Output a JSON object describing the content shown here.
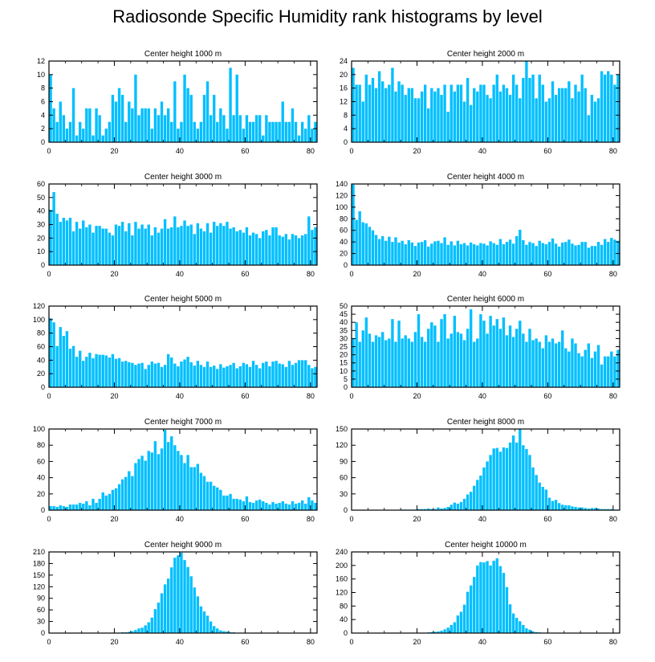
{
  "title": "Radiosonde Specific Humidity rank histograms by level",
  "bar_color": "#00bfff",
  "chart_data": [
    {
      "type": "bar",
      "title": "Center height 1000 m",
      "xlim": [
        0,
        82
      ],
      "ylim": [
        0,
        12
      ],
      "xticks": [
        0,
        20,
        40,
        60,
        80
      ],
      "yticks": [
        0,
        2,
        4,
        6,
        8,
        10,
        12
      ],
      "values": [
        10,
        5,
        3,
        6,
        4,
        2,
        3,
        8,
        1,
        3,
        2,
        5,
        5,
        1,
        5,
        4,
        1,
        2,
        3,
        7,
        6,
        8,
        7,
        3,
        6,
        5,
        10,
        4,
        5,
        5,
        5,
        2,
        5,
        4,
        6,
        4,
        5,
        3,
        9,
        2,
        3,
        10,
        8,
        7,
        3,
        2,
        3,
        7,
        9,
        4,
        7,
        3,
        5,
        4,
        2,
        11,
        4,
        10,
        4,
        2,
        4,
        3,
        3,
        4,
        4,
        1,
        4,
        3,
        3,
        3,
        3,
        6,
        3,
        3,
        5,
        3,
        1,
        3,
        2,
        4,
        2,
        3
      ]
    },
    {
      "type": "bar",
      "title": "Center height 2000 m",
      "xlim": [
        0,
        82
      ],
      "ylim": [
        0,
        24
      ],
      "xticks": [
        0,
        20,
        40,
        60,
        80
      ],
      "yticks": [
        0,
        4,
        8,
        12,
        16,
        20,
        24
      ],
      "values": [
        22,
        17,
        17,
        12,
        20,
        17,
        19,
        16,
        21,
        18,
        16,
        17,
        22,
        15,
        18,
        17,
        14,
        16,
        16,
        13,
        13,
        15,
        17,
        10,
        16,
        15,
        16,
        14,
        17,
        9,
        17,
        15,
        17,
        17,
        12,
        19,
        11,
        16,
        15,
        17,
        17,
        14,
        13,
        17,
        20,
        15,
        17,
        16,
        14,
        20,
        17,
        13,
        19,
        24,
        19,
        20,
        13,
        20,
        17,
        12,
        13,
        18,
        14,
        16,
        16,
        16,
        18,
        13,
        17,
        15,
        20,
        16,
        8,
        14,
        12,
        13,
        21,
        20,
        21,
        20,
        17,
        20
      ]
    },
    {
      "type": "bar",
      "title": "Center height 3000 m",
      "xlim": [
        0,
        82
      ],
      "ylim": [
        0,
        60
      ],
      "xticks": [
        0,
        20,
        40,
        60,
        80
      ],
      "yticks": [
        0,
        10,
        20,
        30,
        40,
        50,
        60
      ],
      "values": [
        41,
        54,
        38,
        32,
        35,
        33,
        35,
        25,
        32,
        27,
        33,
        28,
        30,
        24,
        29,
        29,
        27,
        27,
        24,
        22,
        30,
        29,
        32,
        25,
        31,
        22,
        32,
        27,
        30,
        27,
        30,
        22,
        28,
        24,
        27,
        34,
        27,
        28,
        36,
        28,
        29,
        33,
        29,
        30,
        23,
        31,
        27,
        25,
        31,
        24,
        32,
        29,
        31,
        29,
        32,
        27,
        28,
        25,
        26,
        24,
        28,
        22,
        24,
        23,
        20,
        25,
        26,
        22,
        28,
        28,
        22,
        21,
        23,
        19,
        23,
        22,
        20,
        22,
        23,
        36,
        26,
        28
      ]
    },
    {
      "type": "bar",
      "title": "Center height 4000 m",
      "xlim": [
        0,
        82
      ],
      "ylim": [
        0,
        140
      ],
      "xticks": [
        0,
        20,
        40,
        60,
        80
      ],
      "yticks": [
        0,
        20,
        40,
        60,
        80,
        100,
        120,
        140
      ],
      "values": [
        139,
        78,
        93,
        74,
        72,
        66,
        60,
        52,
        45,
        50,
        42,
        49,
        40,
        48,
        39,
        42,
        36,
        43,
        39,
        33,
        39,
        40,
        43,
        32,
        37,
        41,
        42,
        38,
        48,
        35,
        41,
        34,
        42,
        36,
        38,
        34,
        39,
        36,
        34,
        38,
        37,
        34,
        41,
        38,
        35,
        45,
        36,
        40,
        44,
        37,
        50,
        61,
        43,
        35,
        40,
        38,
        33,
        42,
        38,
        36,
        40,
        46,
        37,
        32,
        39,
        40,
        44,
        37,
        34,
        35,
        40,
        40,
        30,
        33,
        33,
        40,
        35,
        45,
        40,
        47,
        44,
        42
      ]
    },
    {
      "type": "bar",
      "title": "Center height 5000 m",
      "xlim": [
        0,
        82
      ],
      "ylim": [
        0,
        120
      ],
      "xticks": [
        0,
        20,
        40,
        60,
        80
      ],
      "yticks": [
        0,
        20,
        40,
        60,
        80,
        100,
        120
      ],
      "values": [
        102,
        96,
        61,
        89,
        76,
        83,
        57,
        61,
        45,
        54,
        39,
        45,
        51,
        43,
        49,
        48,
        48,
        47,
        44,
        49,
        42,
        43,
        38,
        39,
        37,
        36,
        33,
        35,
        36,
        27,
        33,
        38,
        35,
        36,
        30,
        33,
        49,
        44,
        35,
        31,
        38,
        41,
        45,
        37,
        32,
        39,
        33,
        30,
        38,
        30,
        32,
        27,
        34,
        29,
        31,
        33,
        36,
        28,
        31,
        36,
        34,
        30,
        39,
        33,
        28,
        36,
        38,
        31,
        38,
        39,
        35,
        34,
        30,
        39,
        33,
        36,
        40,
        40,
        40,
        33,
        28,
        30
      ]
    },
    {
      "type": "bar",
      "title": "Center height 6000 m",
      "xlim": [
        0,
        82
      ],
      "ylim": [
        0,
        50
      ],
      "xticks": [
        0,
        20,
        40,
        60,
        80
      ],
      "yticks": [
        0,
        5,
        10,
        15,
        20,
        25,
        30,
        35,
        40,
        45,
        50
      ],
      "values": [
        30,
        40,
        28,
        35,
        43,
        33,
        28,
        32,
        31,
        34,
        29,
        30,
        42,
        28,
        41,
        30,
        32,
        30,
        28,
        34,
        45,
        31,
        28,
        36,
        40,
        38,
        28,
        42,
        45,
        30,
        33,
        44,
        34,
        33,
        29,
        36,
        48,
        28,
        30,
        45,
        41,
        33,
        44,
        38,
        42,
        36,
        43,
        32,
        38,
        31,
        36,
        41,
        33,
        28,
        36,
        29,
        30,
        28,
        24,
        32,
        28,
        30,
        27,
        28,
        35,
        24,
        22,
        30,
        27,
        21,
        19,
        23,
        27,
        18,
        22,
        26,
        14,
        19,
        19,
        22,
        19,
        23
      ]
    },
    {
      "type": "bar",
      "title": "Center height 7000 m",
      "xlim": [
        0,
        82
      ],
      "ylim": [
        0,
        100
      ],
      "xticks": [
        0,
        20,
        40,
        60,
        80
      ],
      "yticks": [
        0,
        20,
        40,
        60,
        80,
        100
      ],
      "values": [
        5,
        5,
        4,
        6,
        5,
        4,
        7,
        7,
        7,
        9,
        8,
        11,
        6,
        14,
        9,
        14,
        22,
        18,
        20,
        25,
        27,
        32,
        38,
        41,
        48,
        42,
        58,
        63,
        67,
        61,
        73,
        71,
        85,
        69,
        76,
        99,
        84,
        91,
        80,
        73,
        68,
        58,
        68,
        53,
        53,
        57,
        46,
        42,
        35,
        35,
        30,
        28,
        25,
        18,
        18,
        20,
        14,
        14,
        13,
        11,
        17,
        10,
        9,
        12,
        13,
        11,
        9,
        7,
        10,
        8,
        9,
        11,
        8,
        7,
        11,
        8,
        9,
        12,
        8,
        16,
        12,
        9
      ]
    },
    {
      "type": "bar",
      "title": "Center height 8000 m",
      "xlim": [
        0,
        82
      ],
      "ylim": [
        0,
        150
      ],
      "xticks": [
        0,
        20,
        40,
        60,
        80
      ],
      "yticks": [
        0,
        30,
        60,
        90,
        120,
        150
      ],
      "values": [
        0,
        0,
        0,
        0,
        0,
        0,
        0,
        0,
        0,
        0,
        0,
        0,
        0,
        0,
        0,
        1,
        1,
        1,
        1,
        1,
        2,
        2,
        2,
        3,
        2,
        2,
        5,
        3,
        4,
        6,
        10,
        14,
        12,
        15,
        21,
        29,
        34,
        45,
        56,
        64,
        79,
        90,
        102,
        114,
        115,
        108,
        116,
        115,
        125,
        138,
        125,
        150,
        120,
        113,
        102,
        79,
        65,
        51,
        43,
        38,
        23,
        17,
        19,
        13,
        10,
        9,
        9,
        7,
        6,
        5,
        5,
        4,
        3,
        4,
        4,
        3,
        2,
        2,
        2,
        2,
        1,
        1
      ]
    },
    {
      "type": "bar",
      "title": "Center height 9000 m",
      "xlim": [
        0,
        82
      ],
      "ylim": [
        0,
        210
      ],
      "xticks": [
        0,
        20,
        40,
        60,
        80
      ],
      "yticks": [
        0,
        30,
        60,
        90,
        120,
        150,
        180,
        210
      ],
      "values": [
        0,
        0,
        0,
        0,
        0,
        0,
        0,
        0,
        0,
        0,
        0,
        0,
        0,
        0,
        0,
        0,
        0,
        0,
        0,
        1,
        1,
        1,
        2,
        2,
        3,
        5,
        8,
        12,
        14,
        20,
        28,
        40,
        62,
        79,
        103,
        126,
        141,
        170,
        195,
        201,
        208,
        189,
        171,
        147,
        118,
        95,
        69,
        56,
        45,
        30,
        18,
        12,
        7,
        5,
        4,
        2,
        2,
        1,
        1,
        1,
        0,
        0,
        0,
        0,
        0,
        0,
        0,
        0,
        0,
        0,
        0,
        0,
        0,
        0,
        0,
        0,
        0,
        0,
        0,
        0,
        0,
        0
      ]
    },
    {
      "type": "bar",
      "title": "Center height 10000 m",
      "xlim": [
        0,
        82
      ],
      "ylim": [
        0,
        240
      ],
      "xticks": [
        0,
        20,
        40,
        60,
        80
      ],
      "yticks": [
        0,
        40,
        80,
        120,
        160,
        200,
        240
      ],
      "values": [
        0,
        0,
        0,
        0,
        0,
        0,
        0,
        0,
        0,
        0,
        0,
        0,
        0,
        0,
        0,
        0,
        0,
        0,
        0,
        0,
        0,
        1,
        1,
        2,
        3,
        4,
        5,
        7,
        11,
        16,
        24,
        32,
        52,
        63,
        84,
        122,
        141,
        166,
        200,
        210,
        209,
        213,
        200,
        214,
        221,
        198,
        178,
        136,
        85,
        58,
        45,
        35,
        24,
        14,
        10,
        5,
        3,
        2,
        1,
        1,
        0,
        0,
        0,
        0,
        0,
        0,
        0,
        0,
        0,
        0,
        0,
        0,
        0,
        0,
        0,
        0,
        0,
        0,
        0,
        0,
        0,
        0
      ]
    }
  ]
}
